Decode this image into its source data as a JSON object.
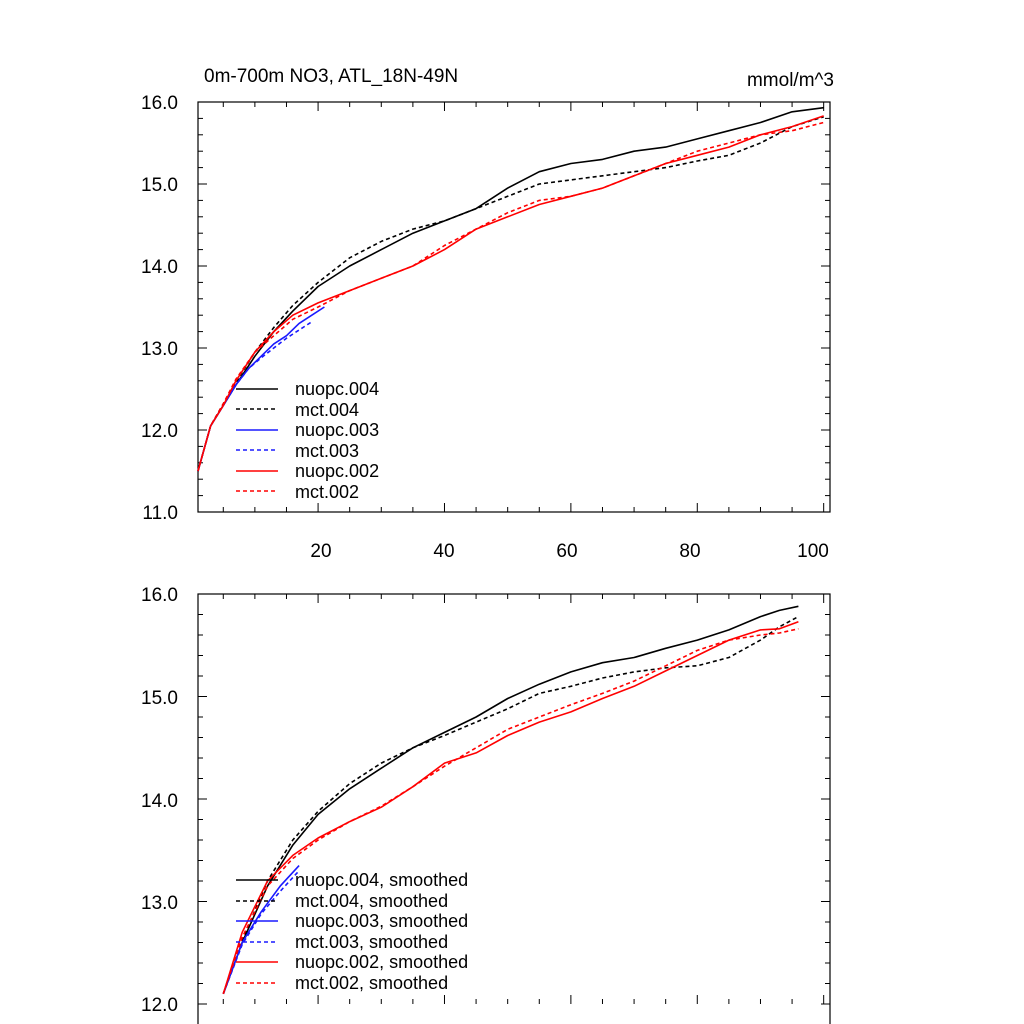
{
  "chart_data": [
    {
      "type": "line",
      "title": "0m-700m NO3, ATL_18N-49N",
      "units": "mmol/m^3",
      "xlim": [
        1,
        101
      ],
      "ylim": [
        11,
        16
      ],
      "yticks": [
        11,
        12,
        13,
        14,
        15,
        16
      ],
      "ytick_labels": [
        "11.0",
        "12.0",
        "13.0",
        "14.0",
        "15.0",
        "16.0"
      ],
      "xticks": [
        20,
        40,
        60,
        80,
        100
      ],
      "xtick_labels": [
        "20",
        "40",
        "60",
        "80",
        "100"
      ],
      "legend_position": "bottom-left",
      "series": [
        {
          "name": "nuopc.004",
          "color": "#000000",
          "dash": "solid",
          "x": [
            1,
            3,
            5,
            7,
            10,
            13,
            16,
            20,
            25,
            30,
            35,
            40,
            45,
            50,
            55,
            60,
            65,
            70,
            75,
            80,
            85,
            90,
            95,
            100
          ],
          "y": [
            11.5,
            12.05,
            12.3,
            12.55,
            12.9,
            13.2,
            13.45,
            13.75,
            14.0,
            14.2,
            14.4,
            14.55,
            14.7,
            14.95,
            15.15,
            15.25,
            15.3,
            15.4,
            15.45,
            15.55,
            15.65,
            15.75,
            15.88,
            15.93
          ]
        },
        {
          "name": "mct.004",
          "color": "#000000",
          "dash": "dashed",
          "x": [
            1,
            3,
            5,
            7,
            10,
            13,
            16,
            20,
            25,
            30,
            35,
            40,
            45,
            50,
            55,
            60,
            65,
            70,
            75,
            80,
            85,
            90,
            95,
            100
          ],
          "y": [
            11.5,
            12.05,
            12.32,
            12.58,
            12.95,
            13.25,
            13.52,
            13.8,
            14.1,
            14.3,
            14.45,
            14.55,
            14.7,
            14.85,
            15.0,
            15.05,
            15.1,
            15.15,
            15.2,
            15.28,
            15.35,
            15.5,
            15.7,
            15.82
          ]
        },
        {
          "name": "nuopc.003",
          "color": "#1a1aff",
          "dash": "solid",
          "x": [
            1,
            3,
            5,
            7,
            9,
            11,
            13,
            15,
            17,
            19,
            21
          ],
          "y": [
            11.5,
            12.05,
            12.3,
            12.55,
            12.75,
            12.9,
            13.05,
            13.15,
            13.3,
            13.4,
            13.5
          ]
        },
        {
          "name": "mct.003",
          "color": "#1a1aff",
          "dash": "dashed",
          "x": [
            1,
            3,
            5,
            7,
            9,
            11,
            13,
            15,
            17,
            19
          ],
          "y": [
            11.5,
            12.05,
            12.3,
            12.55,
            12.75,
            12.88,
            13.0,
            13.12,
            13.22,
            13.32
          ]
        },
        {
          "name": "nuopc.002",
          "color": "#ff0000",
          "dash": "solid",
          "x": [
            1,
            3,
            5,
            7,
            10,
            13,
            16,
            20,
            25,
            30,
            35,
            40,
            45,
            50,
            55,
            60,
            65,
            70,
            75,
            80,
            85,
            90,
            95,
            100
          ],
          "y": [
            11.5,
            12.05,
            12.3,
            12.6,
            12.95,
            13.2,
            13.4,
            13.55,
            13.7,
            13.85,
            14.0,
            14.2,
            14.45,
            14.6,
            14.75,
            14.85,
            14.95,
            15.1,
            15.25,
            15.35,
            15.45,
            15.6,
            15.7,
            15.83
          ]
        },
        {
          "name": "mct.002",
          "color": "#ff0000",
          "dash": "dashed",
          "x": [
            1,
            3,
            5,
            7,
            10,
            13,
            16,
            20,
            25,
            30,
            35,
            40,
            45,
            50,
            55,
            60,
            65,
            70,
            75,
            80,
            85,
            90,
            95,
            100
          ],
          "y": [
            11.5,
            12.05,
            12.32,
            12.62,
            12.95,
            13.15,
            13.35,
            13.5,
            13.7,
            13.85,
            14.0,
            14.25,
            14.45,
            14.65,
            14.8,
            14.85,
            14.95,
            15.1,
            15.25,
            15.4,
            15.5,
            15.6,
            15.65,
            15.75
          ]
        }
      ]
    },
    {
      "type": "line",
      "title": "",
      "xlim": [
        1,
        101
      ],
      "ylim": [
        12,
        16
      ],
      "yticks": [
        12,
        13,
        14,
        15,
        16
      ],
      "ytick_labels": [
        "12.0",
        "13.0",
        "14.0",
        "15.0",
        "16.0"
      ],
      "xticks": [
        20,
        40,
        60,
        80,
        100
      ],
      "legend_position": "bottom-left",
      "series": [
        {
          "name": "nuopc.004, smoothed",
          "color": "#000000",
          "dash": "solid",
          "x": [
            5,
            8,
            12,
            16,
            20,
            25,
            30,
            35,
            40,
            45,
            50,
            55,
            60,
            65,
            70,
            75,
            80,
            85,
            90,
            93,
            96
          ],
          "y": [
            12.1,
            12.6,
            13.15,
            13.55,
            13.85,
            14.1,
            14.3,
            14.5,
            14.65,
            14.8,
            14.98,
            15.12,
            15.24,
            15.33,
            15.38,
            15.47,
            15.55,
            15.65,
            15.78,
            15.84,
            15.88
          ]
        },
        {
          "name": "mct.004, smoothed",
          "color": "#000000",
          "dash": "dashed",
          "x": [
            5,
            8,
            12,
            16,
            20,
            25,
            30,
            35,
            40,
            45,
            50,
            55,
            60,
            65,
            70,
            75,
            80,
            85,
            90,
            93,
            96
          ],
          "y": [
            12.1,
            12.62,
            13.2,
            13.6,
            13.88,
            14.15,
            14.35,
            14.5,
            14.62,
            14.75,
            14.88,
            15.03,
            15.1,
            15.18,
            15.24,
            15.28,
            15.3,
            15.38,
            15.55,
            15.68,
            15.78
          ]
        },
        {
          "name": "nuopc.003, smoothed",
          "color": "#1a1aff",
          "dash": "solid",
          "x": [
            5,
            8,
            11,
            14,
            17
          ],
          "y": [
            12.1,
            12.6,
            12.9,
            13.15,
            13.35
          ]
        },
        {
          "name": "mct.003, smoothed",
          "color": "#1a1aff",
          "dash": "dashed",
          "x": [
            5,
            8,
            11,
            14,
            17
          ],
          "y": [
            12.1,
            12.58,
            12.88,
            13.1,
            13.3
          ]
        },
        {
          "name": "nuopc.002, smoothed",
          "color": "#ff0000",
          "dash": "solid",
          "x": [
            5,
            8,
            12,
            16,
            20,
            25,
            30,
            35,
            40,
            45,
            50,
            55,
            60,
            65,
            70,
            75,
            80,
            85,
            90,
            93,
            96
          ],
          "y": [
            12.1,
            12.7,
            13.2,
            13.45,
            13.62,
            13.78,
            13.92,
            14.12,
            14.35,
            14.45,
            14.62,
            14.75,
            14.85,
            14.98,
            15.1,
            15.25,
            15.4,
            15.55,
            15.65,
            15.66,
            15.73
          ]
        },
        {
          "name": "mct.002, smoothed",
          "color": "#ff0000",
          "dash": "dashed",
          "x": [
            5,
            8,
            12,
            16,
            20,
            25,
            30,
            35,
            40,
            45,
            50,
            55,
            60,
            65,
            70,
            75,
            80,
            85,
            90,
            93,
            96
          ],
          "y": [
            12.1,
            12.65,
            13.15,
            13.42,
            13.6,
            13.78,
            13.93,
            14.12,
            14.32,
            14.5,
            14.68,
            14.8,
            14.92,
            15.03,
            15.15,
            15.3,
            15.45,
            15.55,
            15.6,
            15.62,
            15.66
          ]
        }
      ]
    }
  ]
}
